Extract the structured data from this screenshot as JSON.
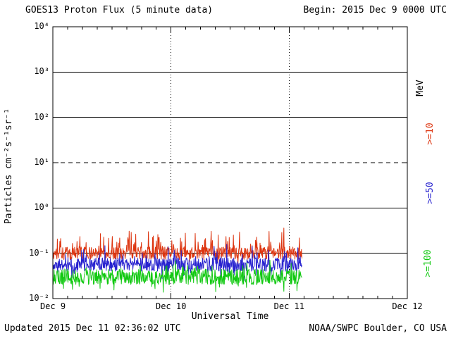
{
  "header": {
    "begin_label": "Begin: 2015 Dec 9 0000 UTC"
  },
  "footer": {
    "updated": "Updated 2015 Dec 11 02:36:02 UTC",
    "credit": "NOAA/SWPC Boulder, CO USA"
  },
  "chart_data": {
    "type": "line",
    "title": "GOES13 Proton Flux (5 minute data)",
    "xlabel": "Universal Time",
    "ylabel": "Particles cm⁻²s⁻¹sr⁻¹",
    "x_tick_labels": [
      "Dec 9",
      "Dec 10",
      "Dec 11",
      "Dec 12"
    ],
    "x_range_days": 3,
    "y_log_range": [
      -2,
      4
    ],
    "y_tick_labels": [
      "10⁴",
      "10³",
      "10²",
      "10¹",
      "10⁰",
      "10⁻¹",
      "10⁻²"
    ],
    "y_tick_exponents": [
      4,
      3,
      2,
      1,
      0,
      -1,
      -2
    ],
    "grid": {
      "solid_horizontal_exponents": [
        3,
        2,
        0,
        -1
      ],
      "dashed_horizontal_exponents": [
        1
      ],
      "dotted_vertical_days": [
        1,
        2
      ]
    },
    "right_axis_labels": [
      {
        "text": "MeV",
        "color": "#000000"
      },
      {
        "text": ">=10",
        "color": "#dd3510"
      },
      {
        "text": ">=50",
        "color": "#2823cf"
      },
      {
        "text": ">=100",
        "color": "#12c912"
      }
    ],
    "data_start_day": 0,
    "data_end_day": 2.108,
    "sample_interval_minutes": 5,
    "series": [
      {
        "name": ">=10 MeV",
        "color": "#dd3510",
        "typical_flux": 0.1,
        "flux_range": [
          0.06,
          0.4
        ],
        "gen": {
          "seed": 11,
          "base_log": -1.0,
          "spread": 0.28,
          "spike_prob": 0.18,
          "spike_amp": 0.5,
          "dip_prob": 0.05,
          "dip_amp": 0.15
        }
      },
      {
        "name": ">=50 MeV",
        "color": "#2823cf",
        "typical_flux": 0.06,
        "flux_range": [
          0.03,
          0.16
        ],
        "gen": {
          "seed": 22,
          "base_log": -1.25,
          "spread": 0.3,
          "spike_prob": 0.12,
          "spike_amp": 0.35,
          "dip_prob": 0.08,
          "dip_amp": 0.25
        }
      },
      {
        "name": ">=100 MeV",
        "color": "#12c912",
        "typical_flux": 0.033,
        "flux_range": [
          0.012,
          0.08
        ],
        "gen": {
          "seed": 33,
          "base_log": -1.52,
          "spread": 0.34,
          "spike_prob": 0.08,
          "spike_amp": 0.3,
          "dip_prob": 0.1,
          "dip_amp": 0.3
        }
      }
    ]
  }
}
